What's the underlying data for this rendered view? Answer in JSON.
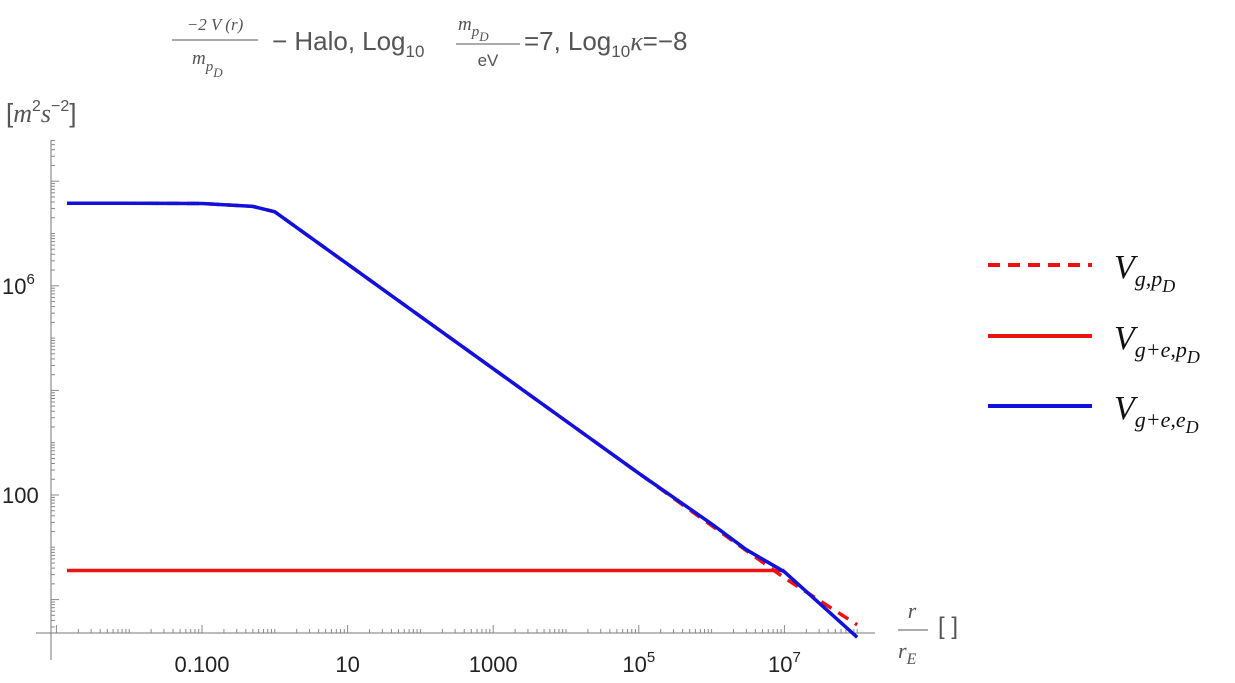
{
  "chart_data": {
    "type": "line",
    "title": {
      "frac_num": "−2 V (r)",
      "frac_den_base": "m",
      "frac_den_sub": "p",
      "frac_den_subsub": "D",
      "dash": "− Halo,",
      "log": "Log",
      "log_sub": "10",
      "mass_num_base": "m",
      "mass_num_sub": "p",
      "mass_num_subsub": "D",
      "mass_den": "eV",
      "mass_value": "=7,",
      "kappa_log": "Log",
      "kappa_log_sub": "10",
      "kappa": "κ",
      "kappa_value": "=−8"
    },
    "ylabel": {
      "open": "[",
      "m": "m",
      "m_exp": "2",
      "s": "s",
      "s_exp": "−2",
      "close": "]"
    },
    "xlabel": {
      "num": "r",
      "den_base": "r",
      "den_sub": "E",
      "units": "[ ]"
    },
    "x_scale": "log",
    "y_scale": "log",
    "xlim": [
      0.001,
      1000000000
    ],
    "ylim": [
      0.5,
      100000000
    ],
    "x_ticks": [
      {
        "value": 0.1,
        "label": "0.100"
      },
      {
        "value": 10,
        "label": "10"
      },
      {
        "value": 1000,
        "label": "1000"
      },
      {
        "value": 100000,
        "label_base": "10",
        "label_exp": "5"
      },
      {
        "value": 10000000,
        "label_base": "10",
        "label_exp": "7"
      }
    ],
    "y_ticks": [
      {
        "value": 100,
        "label": "100"
      },
      {
        "value": 1000000,
        "label_base": "10",
        "label_exp": "6"
      }
    ],
    "grid": false,
    "legend_position": "right",
    "series": [
      {
        "key": "g_pD",
        "name_base": "V",
        "name_sub": "g,p",
        "name_subsub": "D",
        "color": "#ee1111",
        "style": "dashed",
        "x": [
          0.001,
          0.01,
          0.1,
          0.5,
          1,
          10,
          100,
          1000,
          10000,
          100000,
          1000000,
          10000000,
          100000000
        ],
        "y": [
          38000000,
          38000000,
          37500000,
          33000000,
          26000000,
          2600000,
          260000,
          26000,
          2600,
          260,
          26,
          2.6,
          0.33
        ]
      },
      {
        "key": "ge_pD",
        "name_base": "V",
        "name_sub": "g+e,p",
        "name_subsub": "D",
        "color": "#ee1111",
        "style": "solid",
        "x": [
          0.001,
          0.01,
          1,
          100,
          10000,
          1000000,
          10000000
        ],
        "y": [
          3.6,
          3.6,
          3.6,
          3.6,
          3.6,
          3.6,
          3.6
        ]
      },
      {
        "key": "ge_eD",
        "name_base": "V",
        "name_sub": "g+e,e",
        "name_subsub": "D",
        "color": "#1111dd",
        "style": "solid",
        "x": [
          0.001,
          0.01,
          0.1,
          0.5,
          1,
          10,
          100,
          1000,
          10000,
          100000,
          1000000,
          3000000,
          10000000,
          100000000
        ],
        "y": [
          38000000,
          38000000,
          37500000,
          33000000,
          26000000,
          2600000,
          260000,
          26000,
          2600,
          260,
          28,
          9,
          3.4,
          0.19
        ]
      }
    ]
  }
}
